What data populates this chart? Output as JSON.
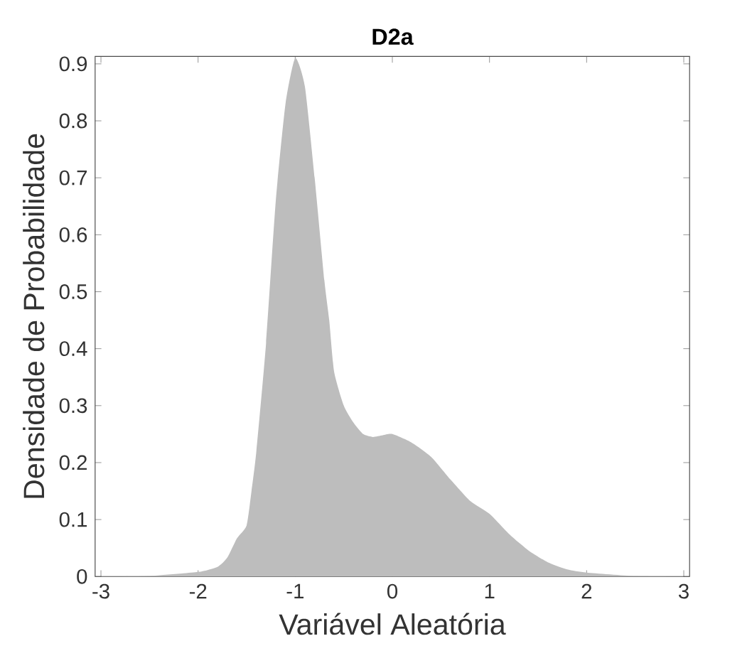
{
  "chart_data": {
    "type": "area",
    "title": "D2a",
    "xlabel": "Variável Aleatória",
    "ylabel": "Densidade de Probabilidade",
    "x": [
      -3,
      -2.5,
      -2,
      -1.8,
      -1.7,
      -1.6,
      -1.5,
      -1.45,
      -1.4,
      -1.3,
      -1.2,
      -1.1,
      -1.0,
      -0.9,
      -0.8,
      -0.7,
      -0.65,
      -0.6,
      -0.5,
      -0.4,
      -0.3,
      -0.2,
      -0.1,
      0,
      0.2,
      0.4,
      0.6,
      0.8,
      1.0,
      1.2,
      1.4,
      1.6,
      1.8,
      2.0,
      2.5,
      3
    ],
    "series": [
      {
        "color": "#bdbdbd",
        "values": [
          0,
          0.001,
          0.008,
          0.017,
          0.033,
          0.067,
          0.09,
          0.15,
          0.22,
          0.41,
          0.66,
          0.83,
          0.91,
          0.86,
          0.7,
          0.52,
          0.45,
          0.36,
          0.3,
          0.27,
          0.25,
          0.245,
          0.248,
          0.25,
          0.235,
          0.21,
          0.17,
          0.133,
          0.11,
          0.075,
          0.046,
          0.025,
          0.0125,
          0.007,
          0.001,
          0
        ]
      }
    ],
    "xlim": [
      -3.06,
      3.06
    ],
    "ylim": [
      0,
      0.913
    ],
    "xticks": [
      -3,
      -2,
      -1,
      0,
      1,
      2,
      3
    ],
    "yticks": [
      0,
      0.1,
      0.2,
      0.3,
      0.4,
      0.5,
      0.6,
      0.7,
      0.8,
      0.9
    ]
  }
}
